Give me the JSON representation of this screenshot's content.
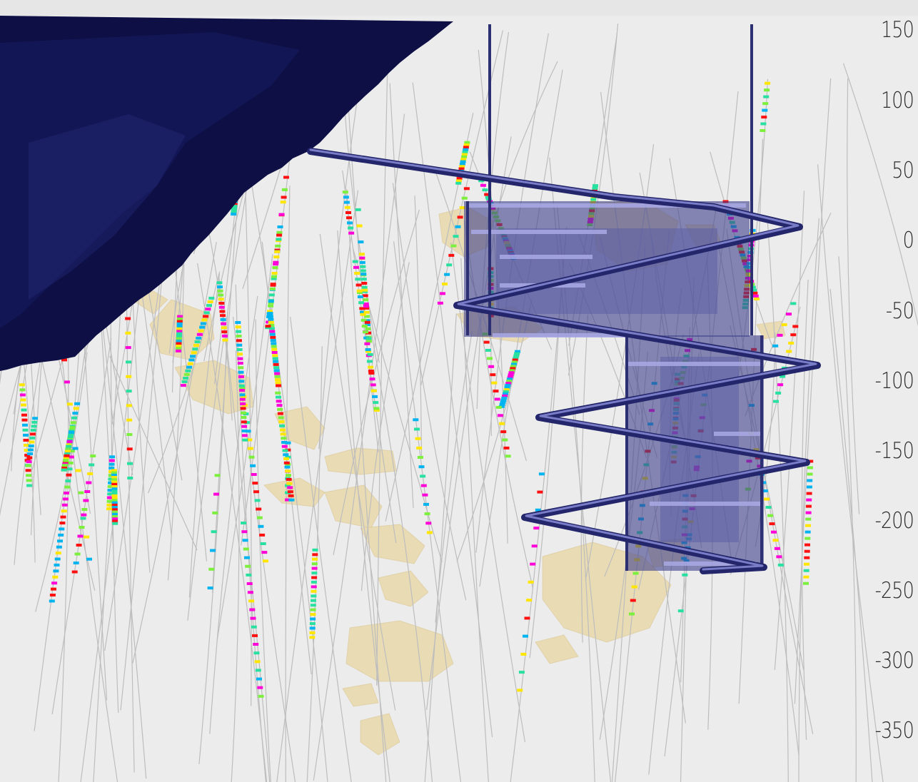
{
  "view": {
    "background": "#ececec",
    "colors": {
      "topography": "#0d0f45",
      "drillhole_trace": "#b9b9b9",
      "orebody": "#e8d7a6",
      "decline_ramp": "#2c2f72",
      "decline_highlight": "#a9a9e6",
      "stope_block": "#3d3f8a",
      "assay_colors": [
        "#00b4f0",
        "#7cf03c",
        "#ff1010",
        "#ff00d8",
        "#ffe600",
        "#28e0a0"
      ]
    },
    "elevation_axis": {
      "labels": [
        "150",
        "100",
        "50",
        "0",
        "-50",
        "-100",
        "-150",
        "-200",
        "-250",
        "-300",
        "-350"
      ]
    }
  }
}
